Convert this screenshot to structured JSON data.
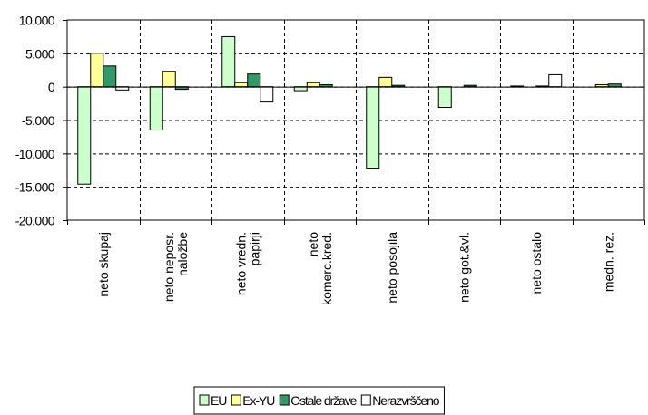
{
  "chart_data": {
    "type": "bar",
    "categories": [
      "neto skupaj",
      "neto neposr. naložbe",
      "neto vredn. papirji",
      "neto komerc.kred.",
      "neto posojila",
      "neto got.&vl.",
      "neto ostalo",
      "medn. rez."
    ],
    "category_lines": [
      [
        "neto skupaj"
      ],
      [
        "neto neposr.",
        "naložbe"
      ],
      [
        "neto vredn.",
        "papirji"
      ],
      [
        "neto",
        "komerc.kred."
      ],
      [
        "neto posojila"
      ],
      [
        "neto got.&vl."
      ],
      [
        "neto ostalo"
      ],
      [
        "medn. rez."
      ]
    ],
    "series": [
      {
        "name": "EU",
        "color": "#ccffcc",
        "values": [
          -14600,
          -6500,
          7500,
          -600,
          -12200,
          -3100,
          100,
          0
        ]
      },
      {
        "name": "Ex-YU",
        "color": "#ffff99",
        "values": [
          5000,
          2300,
          600,
          600,
          1400,
          0,
          0,
          300
        ]
      },
      {
        "name": "Ostale države",
        "color": "#339966",
        "values": [
          3100,
          -400,
          1900,
          300,
          200,
          200,
          100,
          400
        ]
      },
      {
        "name": "Nerazvrščeno",
        "color": "#ffffff",
        "values": [
          -500,
          0,
          -2300,
          0,
          0,
          0,
          1800,
          0
        ]
      }
    ],
    "y_ticks": [
      10000,
      5000,
      0,
      -5000,
      -10000,
      -15000,
      -20000
    ],
    "y_tick_labels": [
      "10.000",
      "5.000",
      "0",
      "-5.000",
      "-10.000",
      "-15.000",
      "-20.000"
    ],
    "ylim": [
      -20000,
      10000
    ],
    "grid": true,
    "legend_position": "bottom"
  }
}
